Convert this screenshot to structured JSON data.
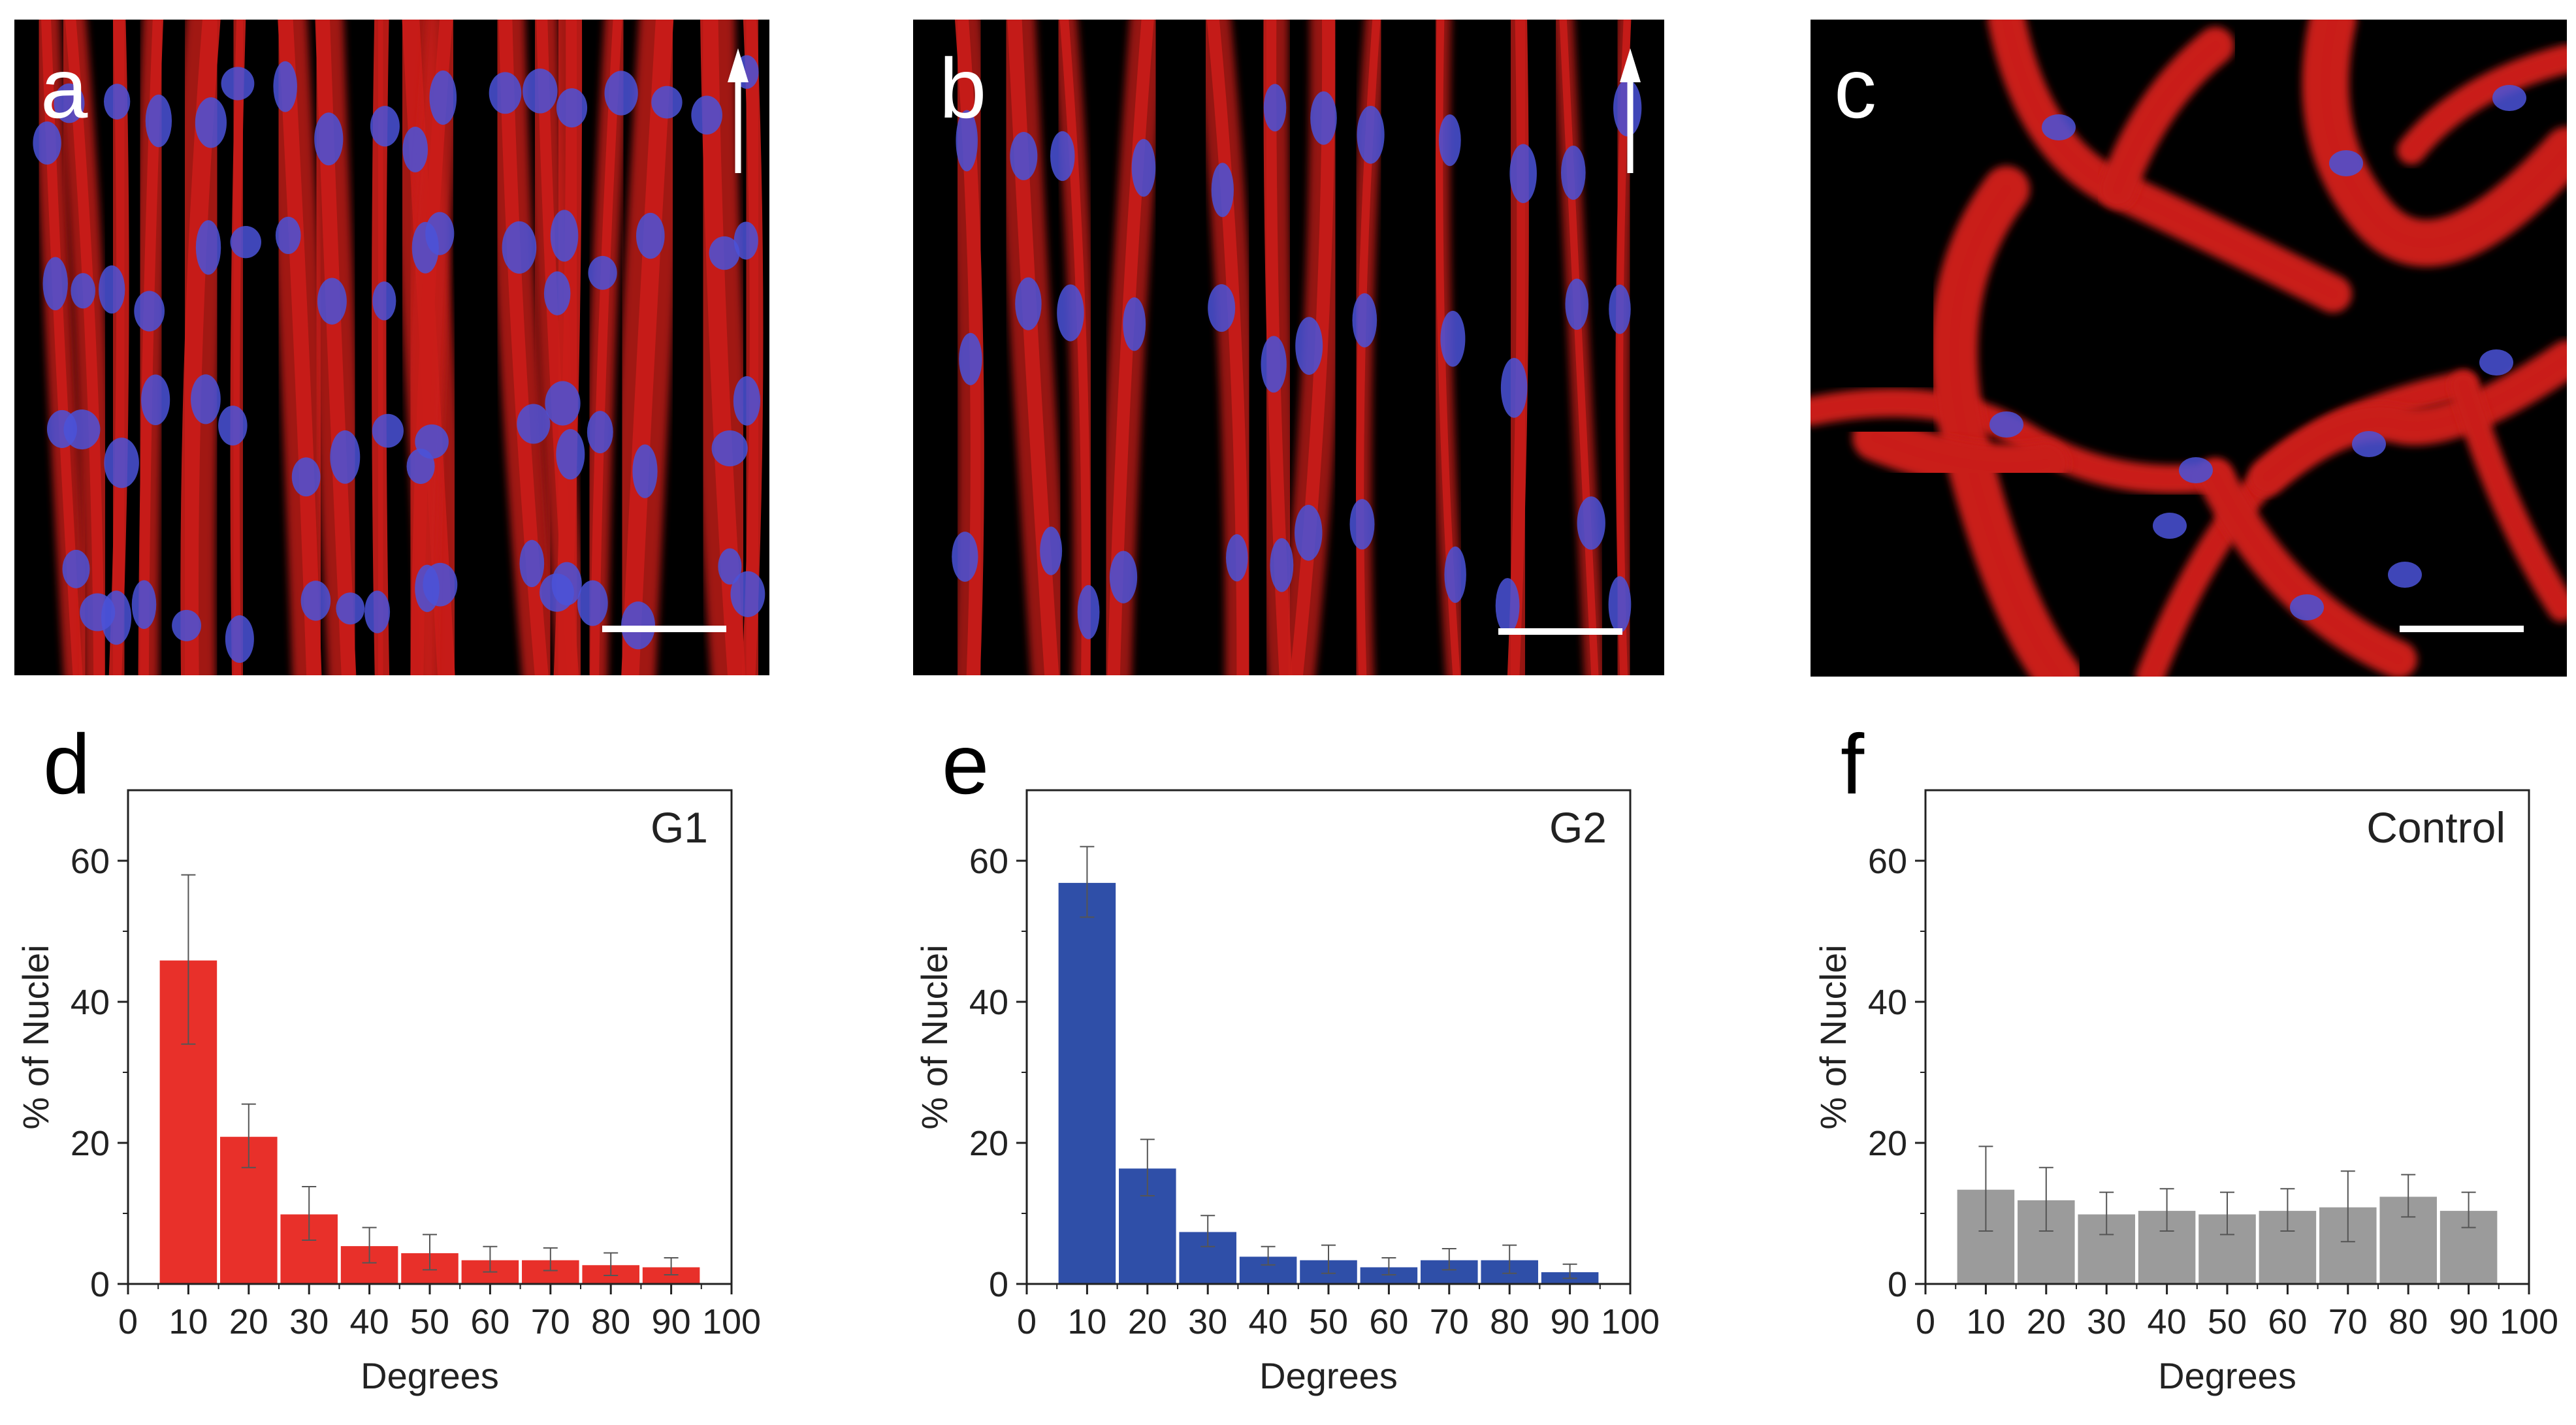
{
  "images": [
    {
      "letter": "a",
      "scale_bar": true,
      "arrow": true,
      "style": "aligned-dense"
    },
    {
      "letter": "b",
      "scale_bar": true,
      "arrow": true,
      "style": "aligned-sparse"
    },
    {
      "letter": "c",
      "scale_bar": true,
      "arrow": false,
      "style": "random"
    }
  ],
  "colors": {
    "actin": "#e0201c",
    "nucleus": "#4a52d8",
    "g1_bar": "#e8302a",
    "g2_bar": "#2f4fa8",
    "control_bar": "#9b9b9b"
  },
  "chart_data": [
    {
      "letter": "d",
      "type": "bar",
      "label": "G1",
      "xlabel": "Degrees",
      "ylabel": "% of Nuclei",
      "x": [
        10,
        20,
        30,
        40,
        50,
        60,
        70,
        80,
        90
      ],
      "values": [
        46,
        21,
        10,
        5.5,
        4.5,
        3.5,
        3.5,
        2.8,
        2.5
      ],
      "errors": [
        12,
        4.5,
        3.8,
        2.5,
        2.5,
        1.8,
        1.6,
        1.6,
        1.2
      ],
      "color": "#e8302a",
      "xlim": [
        0,
        100
      ],
      "ylim": [
        0,
        70
      ],
      "xticks": [
        0,
        10,
        20,
        30,
        40,
        50,
        60,
        70,
        80,
        90,
        100
      ],
      "yticks": [
        0,
        20,
        40,
        60
      ]
    },
    {
      "letter": "e",
      "type": "bar",
      "label": "G2",
      "xlabel": "Degrees",
      "ylabel": "% of Nuclei",
      "x": [
        10,
        20,
        30,
        40,
        50,
        60,
        70,
        80,
        90
      ],
      "values": [
        57,
        16.5,
        7.5,
        4,
        3.5,
        2.5,
        3.5,
        3.5,
        1.8
      ],
      "errors": [
        5,
        4,
        2.2,
        1.3,
        2,
        1.2,
        1.5,
        2,
        1
      ],
      "color": "#2f4fa8",
      "xlim": [
        0,
        100
      ],
      "ylim": [
        0,
        70
      ],
      "xticks": [
        0,
        10,
        20,
        30,
        40,
        50,
        60,
        70,
        80,
        90,
        100
      ],
      "yticks": [
        0,
        20,
        40,
        60
      ]
    },
    {
      "letter": "f",
      "type": "bar",
      "label": "Control",
      "xlabel": "Degrees",
      "ylabel": "% of Nuclei",
      "x": [
        10,
        20,
        30,
        40,
        50,
        60,
        70,
        80,
        90
      ],
      "values": [
        13.5,
        12,
        10,
        10.5,
        10,
        10.5,
        11,
        12.5,
        10.5
      ],
      "errors": [
        6,
        4.5,
        3,
        3,
        3,
        3,
        5,
        3,
        2.5
      ],
      "color": "#9b9b9b",
      "xlim": [
        0,
        100
      ],
      "ylim": [
        0,
        70
      ],
      "xticks": [
        0,
        10,
        20,
        30,
        40,
        50,
        60,
        70,
        80,
        90,
        100
      ],
      "yticks": [
        0,
        20,
        40,
        60
      ]
    }
  ]
}
